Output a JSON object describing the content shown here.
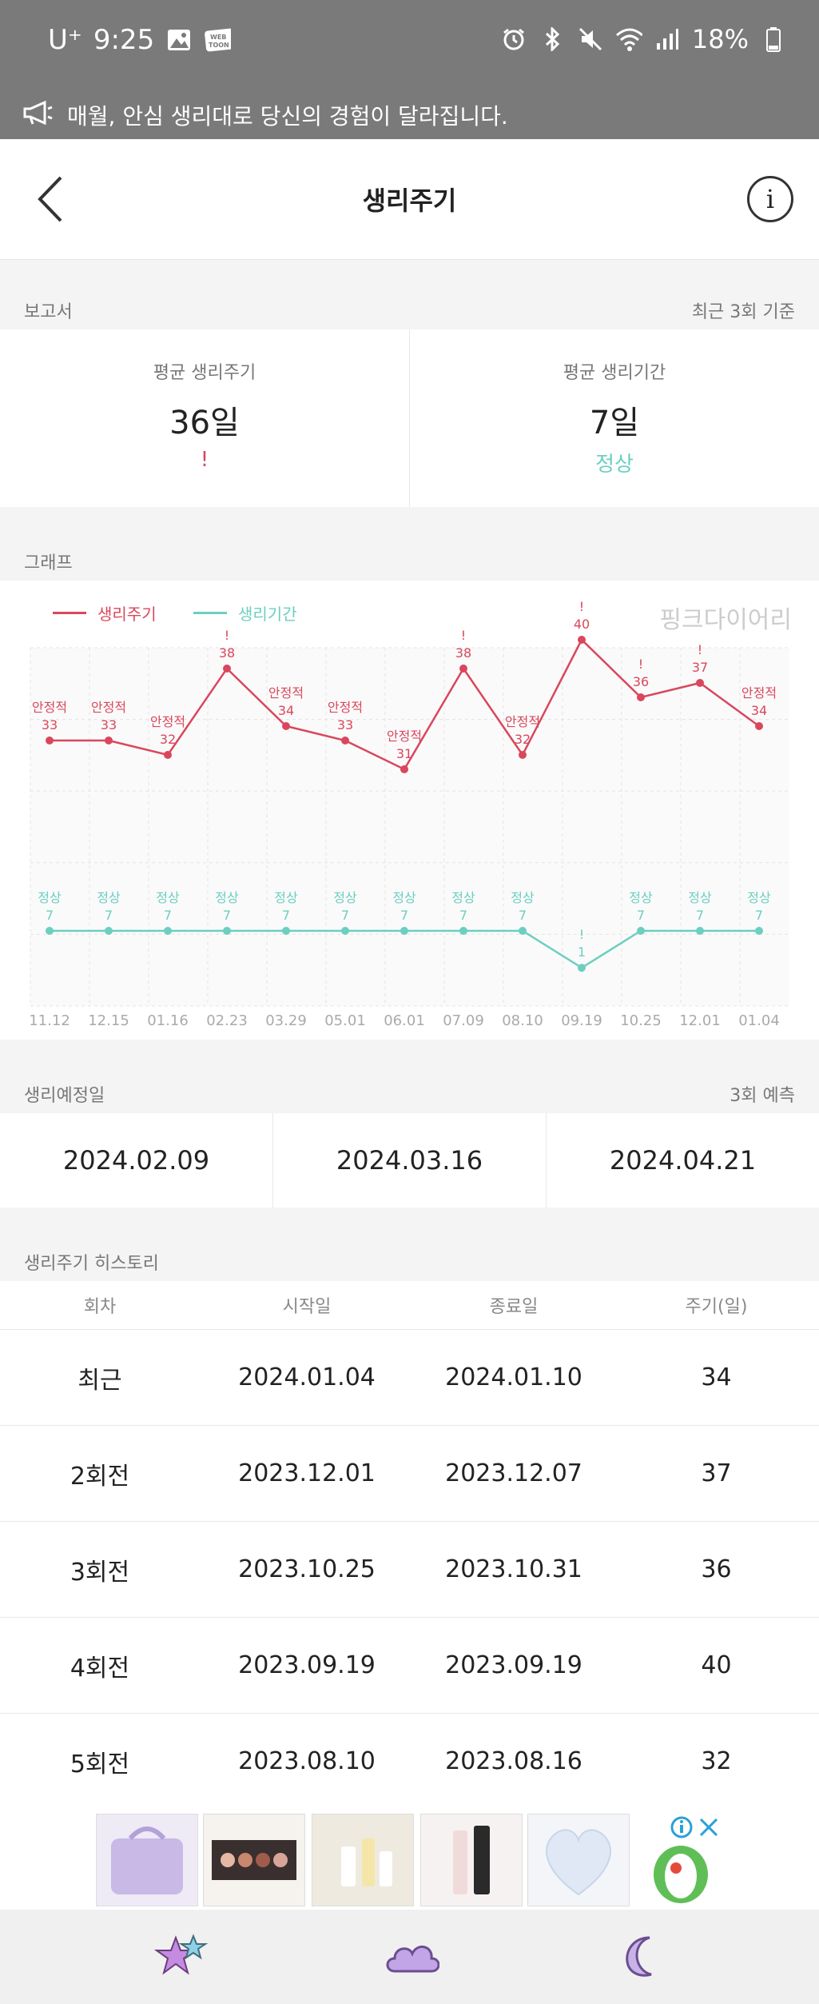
{
  "status_bar": {
    "carrier": "U⁺",
    "time": "9:25",
    "battery": "18%",
    "icons": [
      "gallery-icon",
      "webtoon-icon",
      "alarm-icon",
      "bluetooth-icon",
      "mute-icon",
      "wifi-icon",
      "signal-icon",
      "battery-icon"
    ]
  },
  "notice": {
    "text": "매월, 안심 생리대로 당신의 경험이 달라집니다."
  },
  "header": {
    "title": "생리주기",
    "info_label": "i"
  },
  "report": {
    "section_label": "보고서",
    "basis": "최근 3회 기준",
    "avg_cycle": {
      "label": "평균 생리주기",
      "value": "36일",
      "status": "!"
    },
    "avg_period": {
      "label": "평균 생리기간",
      "value": "7일",
      "status": "정상"
    }
  },
  "graph": {
    "section_label": "그래프",
    "watermark": "핑크다이어리"
  },
  "chart_data": {
    "type": "line",
    "x": [
      "11.12",
      "12.15",
      "01.16",
      "02.23",
      "03.29",
      "05.01",
      "06.01",
      "07.09",
      "08.10",
      "09.19",
      "10.25",
      "12.01",
      "01.04"
    ],
    "series": [
      {
        "name": "생리주기",
        "color": "#d9475c",
        "values": [
          33,
          33,
          32,
          38,
          34,
          33,
          31,
          38,
          32,
          40,
          36,
          37,
          34
        ],
        "labels": [
          "안정적",
          "안정적",
          "안정적",
          "!",
          "안정적",
          "안정적",
          "안정적",
          "!",
          "안정적",
          "!",
          "!",
          "!",
          "안정적"
        ]
      },
      {
        "name": "생리기간",
        "color": "#6ccfc0",
        "values": [
          7,
          7,
          7,
          7,
          7,
          7,
          7,
          7,
          7,
          1,
          7,
          7,
          7
        ],
        "labels": [
          "정상",
          "정상",
          "정상",
          "정상",
          "정상",
          "정상",
          "정상",
          "정상",
          "정상",
          "!",
          "정상",
          "정상",
          "정상"
        ]
      }
    ],
    "grid": true,
    "legend": "top-left"
  },
  "forecast": {
    "section_label": "생리예정일",
    "count": "3회 예측",
    "dates": [
      "2024.02.09",
      "2024.03.16",
      "2024.04.21"
    ]
  },
  "history": {
    "section_label": "생리주기 히스토리",
    "columns": [
      "회차",
      "시작일",
      "종료일",
      "주기(일)"
    ],
    "rows": [
      [
        "최근",
        "2024.01.04",
        "2024.01.10",
        "34"
      ],
      [
        "2회전",
        "2023.12.01",
        "2023.12.07",
        "37"
      ],
      [
        "3회전",
        "2023.10.25",
        "2023.10.31",
        "36"
      ],
      [
        "4회전",
        "2023.09.19",
        "2023.09.19",
        "40"
      ],
      [
        "5회전",
        "2023.08.10",
        "2023.08.16",
        "32"
      ]
    ]
  },
  "ad": {
    "items": [
      "pouch",
      "eyeshadow-palette",
      "serum-set",
      "lip-stick",
      "heart-puff"
    ]
  },
  "colors": {
    "cycle": "#d9475c",
    "period": "#6ccfc0",
    "grey_bar": "#7a7a7a"
  },
  "bottom_nav": {
    "icons": [
      "star-icon",
      "cloud-icon",
      "moon-icon"
    ]
  }
}
